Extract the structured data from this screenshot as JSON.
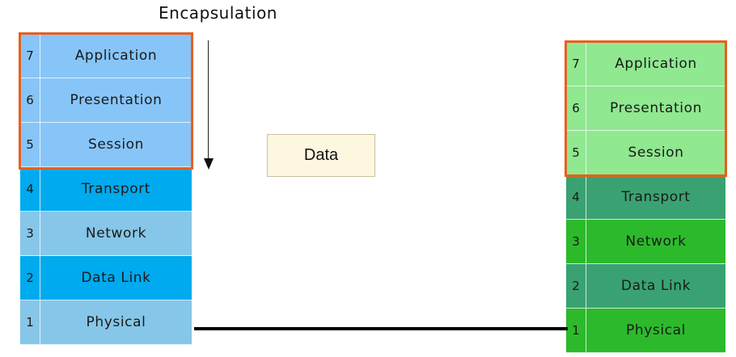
{
  "title": "Encapsulation",
  "data_box_label": "Data",
  "colors": {
    "highlight_border": "#e8601c",
    "link_line": "#000000"
  },
  "left_stack": {
    "layers": [
      {
        "number": "7",
        "name": "Application",
        "color": "#87c5f8"
      },
      {
        "number": "6",
        "name": "Presentation",
        "color": "#87c5f8"
      },
      {
        "number": "5",
        "name": "Session",
        "color": "#87c5f8"
      },
      {
        "number": "4",
        "name": "Transport",
        "color": "#00aaee"
      },
      {
        "number": "3",
        "name": "Network",
        "color": "#86c6e8"
      },
      {
        "number": "2",
        "name": "Data Link",
        "color": "#00aaee"
      },
      {
        "number": "1",
        "name": "Physical",
        "color": "#86c6e8"
      }
    ]
  },
  "right_stack": {
    "layers": [
      {
        "number": "7",
        "name": "Application",
        "color": "#90e890"
      },
      {
        "number": "6",
        "name": "Presentation",
        "color": "#90e890"
      },
      {
        "number": "5",
        "name": "Session",
        "color": "#90e890"
      },
      {
        "number": "4",
        "name": "Transport",
        "color": "#3aa272"
      },
      {
        "number": "3",
        "name": "Network",
        "color": "#2cba2c"
      },
      {
        "number": "2",
        "name": "Data Link",
        "color": "#3aa272"
      },
      {
        "number": "1",
        "name": "Physical",
        "color": "#2cba2c"
      }
    ]
  }
}
